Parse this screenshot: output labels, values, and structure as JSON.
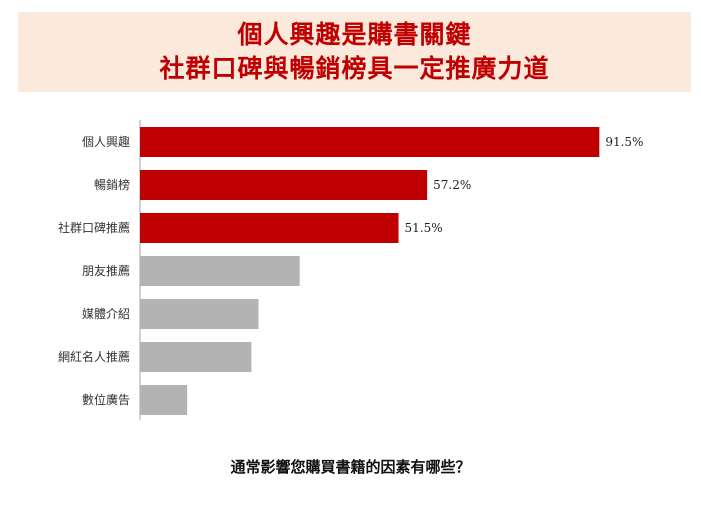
{
  "header": {
    "title_line1": "個人興趣是購書關鍵",
    "title_line2": "社群口碑與暢銷榜具一定推廣力道"
  },
  "chart_data": {
    "type": "bar",
    "orientation": "horizontal",
    "categories": [
      "個人興趣",
      "暢銷榜",
      "社群口碑推薦",
      "朋友推薦",
      "媒體介紹",
      "網紅名人推薦",
      "數位廣告"
    ],
    "values": [
      91.5,
      57.2,
      51.5,
      31.8,
      23.6,
      22.2,
      9.4
    ],
    "data_labels": [
      "91.5%",
      "57.2%",
      "51.5%",
      "",
      "",
      "",
      ""
    ],
    "highlight": [
      true,
      true,
      true,
      false,
      false,
      false,
      false
    ],
    "colors": {
      "highlight": "#c00000",
      "normal": "#b3b3b3",
      "axis": "#a6a6a6"
    },
    "xlim": [
      0,
      100
    ],
    "xlabel": "通常影響您購買書籍的因素有哪些？"
  }
}
